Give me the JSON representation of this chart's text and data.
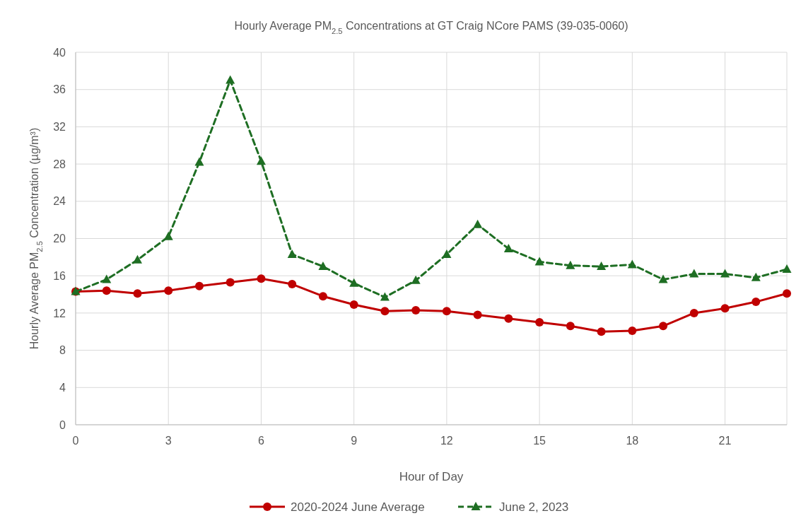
{
  "chart_data": {
    "type": "line",
    "title": "Hourly Average PM$_{2.5}$ Concentrations at GT Craig NCore PAMS (39-035-0060)",
    "xlabel": "Hour of Day",
    "ylabel": "Hourly Average PM$_{2.5}$ Concentration (µg/m³)",
    "x": [
      0,
      1,
      2,
      3,
      4,
      5,
      6,
      7,
      8,
      9,
      10,
      11,
      12,
      13,
      14,
      15,
      16,
      17,
      18,
      19,
      20,
      21,
      22,
      23
    ],
    "xlim": [
      0,
      23
    ],
    "xticks": [
      0,
      3,
      6,
      9,
      12,
      15,
      18,
      21
    ],
    "ylim": [
      0,
      40
    ],
    "yticks": [
      0,
      4,
      8,
      12,
      16,
      20,
      24,
      28,
      32,
      36,
      40
    ],
    "grid": true,
    "legend": "bottom",
    "series": [
      {
        "name": "2020-2024 June Average",
        "color": "#c00000",
        "marker": "circle",
        "line_style": "solid",
        "values": [
          14.3,
          14.4,
          14.1,
          14.4,
          14.9,
          15.3,
          15.7,
          15.1,
          13.8,
          12.9,
          12.2,
          12.3,
          12.2,
          11.8,
          11.4,
          11.0,
          10.6,
          10.0,
          10.1,
          10.6,
          12.0,
          12.5,
          13.2,
          14.1
        ]
      },
      {
        "name": "June 2, 2023",
        "color": "#1e6e23",
        "marker": "triangle",
        "line_style": "dashed",
        "values": [
          14.3,
          15.6,
          17.7,
          20.2,
          28.2,
          37.0,
          28.3,
          18.3,
          17.0,
          15.2,
          13.7,
          15.5,
          18.3,
          21.5,
          18.9,
          17.5,
          17.1,
          17.0,
          17.2,
          15.6,
          16.2,
          16.2,
          15.8,
          16.7
        ]
      }
    ]
  }
}
